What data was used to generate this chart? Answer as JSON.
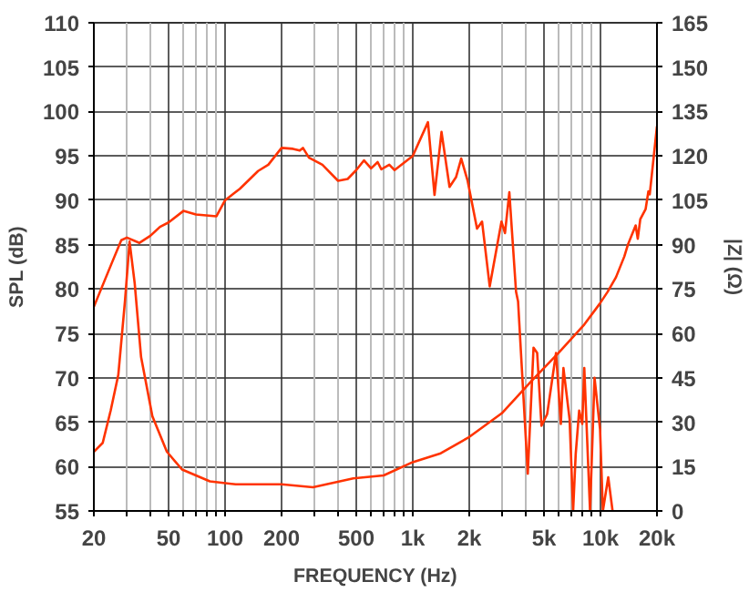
{
  "chart_data": {
    "type": "line",
    "xlabel": "FREQUENCY (Hz)",
    "ylabel": "SPL (dB)",
    "y2label": "|Z| (Ω)",
    "log": "x",
    "grid": true,
    "xlim": [
      20,
      20000
    ],
    "ylim": [
      55,
      110
    ],
    "y2lim": [
      0,
      165
    ],
    "xticks": [
      20,
      {
        "value": 30,
        "label": null
      },
      {
        "value": 40,
        "label": null
      },
      50,
      {
        "value": 60,
        "label": null
      },
      {
        "value": 70,
        "label": null
      },
      {
        "value": 80,
        "label": null
      },
      {
        "value": 90,
        "label": null
      },
      100,
      200,
      {
        "value": 300,
        "label": null
      },
      {
        "value": 400,
        "label": null
      },
      500,
      {
        "value": 600,
        "label": null
      },
      {
        "value": 700,
        "label": null
      },
      {
        "value": 800,
        "label": null
      },
      {
        "value": 900,
        "label": null
      },
      {
        "value": 1000,
        "label": "1k"
      },
      {
        "value": 2000,
        "label": "2k"
      },
      {
        "value": 3000,
        "label": null
      },
      {
        "value": 4000,
        "label": null
      },
      {
        "value": 5000,
        "label": "5k"
      },
      {
        "value": 6000,
        "label": null
      },
      {
        "value": 7000,
        "label": null
      },
      {
        "value": 8000,
        "label": null
      },
      {
        "value": 9000,
        "label": null
      },
      {
        "value": 10000,
        "label": "10k"
      },
      {
        "value": 20000,
        "label": "20k"
      }
    ],
    "yticks": [
      55,
      60,
      65,
      70,
      75,
      80,
      85,
      90,
      95,
      100,
      105,
      110
    ],
    "y2ticks": [
      0,
      15,
      30,
      45,
      60,
      75,
      90,
      105,
      120,
      135,
      150,
      165
    ],
    "series": [
      {
        "color": "#ff3300",
        "x": [
          20,
          25,
          28,
          30,
          35,
          40,
          45,
          50,
          60,
          70,
          90,
          100,
          120,
          150,
          170,
          200,
          230,
          250,
          260,
          280,
          330,
          400,
          450,
          500,
          550,
          600,
          650,
          680,
          750,
          800,
          1000,
          1205,
          1306,
          1423,
          1570,
          1700,
          1812,
          1960,
          2200,
          2340,
          2570,
          2970,
          3100,
          3270,
          3550,
          3640,
          4100,
          4400,
          4600,
          4850,
          5200,
          5800,
          6150,
          6350,
          6850,
          7150,
          7380,
          7700,
          8000,
          8200,
          8800,
          9300,
          9950,
          10300,
          11000,
          11600
        ],
        "values": [
          78,
          83,
          85.5,
          85.8,
          85.2,
          86,
          87,
          87.5,
          88.8,
          88.4,
          88.2,
          90,
          91.3,
          93.3,
          94,
          95.9,
          95.8,
          95.6,
          95.9,
          94.8,
          94,
          92.2,
          92.4,
          93.4,
          94.5,
          93.6,
          94.3,
          93.5,
          94,
          93.4,
          95,
          98.8,
          90.6,
          97.7,
          91.5,
          92.6,
          94.7,
          92.2,
          86.8,
          87.6,
          80.3,
          87.6,
          86.3,
          90.9,
          79.7,
          78.6,
          59.2,
          73.4,
          72.8,
          64.6,
          65.9,
          72.8,
          64.8,
          71.1,
          65.3,
          55,
          61.4,
          66.3,
          64.8,
          71.1,
          55,
          70,
          64.2,
          55,
          58.8,
          55
        ]
      },
      {
        "color": "#ff3300",
        "axis": "y2",
        "x": [
          20,
          22.3,
          24.6,
          27,
          29.3,
          31,
          33,
          35.7,
          41,
          49,
          59,
          83,
          114,
          200,
          294,
          482,
          700,
          1000,
          1410,
          2000,
          2980,
          4300,
          6000,
          8200,
          9900,
          10900,
          12100,
          13400,
          14000,
          15400,
          15800,
          16300,
          17400,
          18000,
          18300,
          20000
        ],
        "values": [
          20,
          23,
          34,
          46,
          71,
          91,
          77,
          52,
          32,
          20,
          14,
          10,
          9,
          9,
          8,
          11,
          12,
          16.5,
          19.5,
          25,
          33,
          44,
          53.5,
          63,
          70,
          74,
          79,
          86,
          90,
          96.5,
          92,
          98.6,
          102,
          108,
          107,
          130
        ]
      }
    ]
  }
}
